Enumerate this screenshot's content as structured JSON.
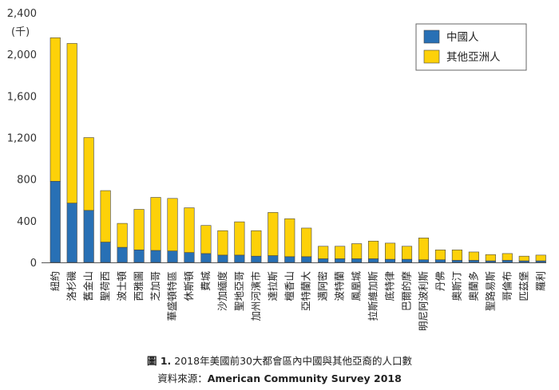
{
  "chart_data": {
    "type": "bar",
    "stacked": true,
    "ylabel": "(千)",
    "ylim": [
      0,
      2400
    ],
    "yticks": [
      "0",
      "400",
      "800",
      "1,200",
      "1,600",
      "2,000",
      "2,400"
    ],
    "grid": false,
    "legend_position": "top-right",
    "categories": [
      "紐約",
      "洛杉磯",
      "舊金山",
      "聖荷西",
      "波士頓",
      "西雅圖",
      "芝加哥",
      "華盛頓特區",
      "休斯頓",
      "費城",
      "沙加緬度",
      "聖地亞哥",
      "加州河濱市",
      "達拉斯",
      "檀香山",
      "亞特蘭大",
      "邁阿密",
      "波特蘭",
      "鳳凰城",
      "拉斯維加斯",
      "底特律",
      "巴爾的摩",
      "明尼阿波利斯",
      "丹佛",
      "奧斯汀",
      "奧蘭多",
      "聖路易斯",
      "哥倫布",
      "匹茲堡",
      "羅利"
    ],
    "series": [
      {
        "name": "中國人",
        "color": "#2870b5",
        "values": [
          780,
          570,
          500,
          195,
          145,
          120,
          115,
          110,
          95,
          85,
          70,
          70,
          60,
          65,
          55,
          55,
          35,
          35,
          35,
          35,
          30,
          30,
          25,
          25,
          20,
          20,
          15,
          20,
          15,
          15
        ]
      },
      {
        "name": "其他亞洲人",
        "color": "#fdd109",
        "values": [
          1380,
          1535,
          700,
          495,
          230,
          390,
          510,
          505,
          430,
          270,
          235,
          320,
          245,
          415,
          365,
          275,
          120,
          120,
          145,
          170,
          155,
          125,
          210,
          95,
          100,
          80,
          60,
          65,
          45,
          55
        ]
      }
    ]
  },
  "caption": {
    "line1_prefix": "圖 1.",
    "line1_text": " 2018年美國前30大都會區內中國與其他亞裔的人口數",
    "line2_prefix": "資料來源：",
    "line2_text": "American Community Survey 2018"
  }
}
